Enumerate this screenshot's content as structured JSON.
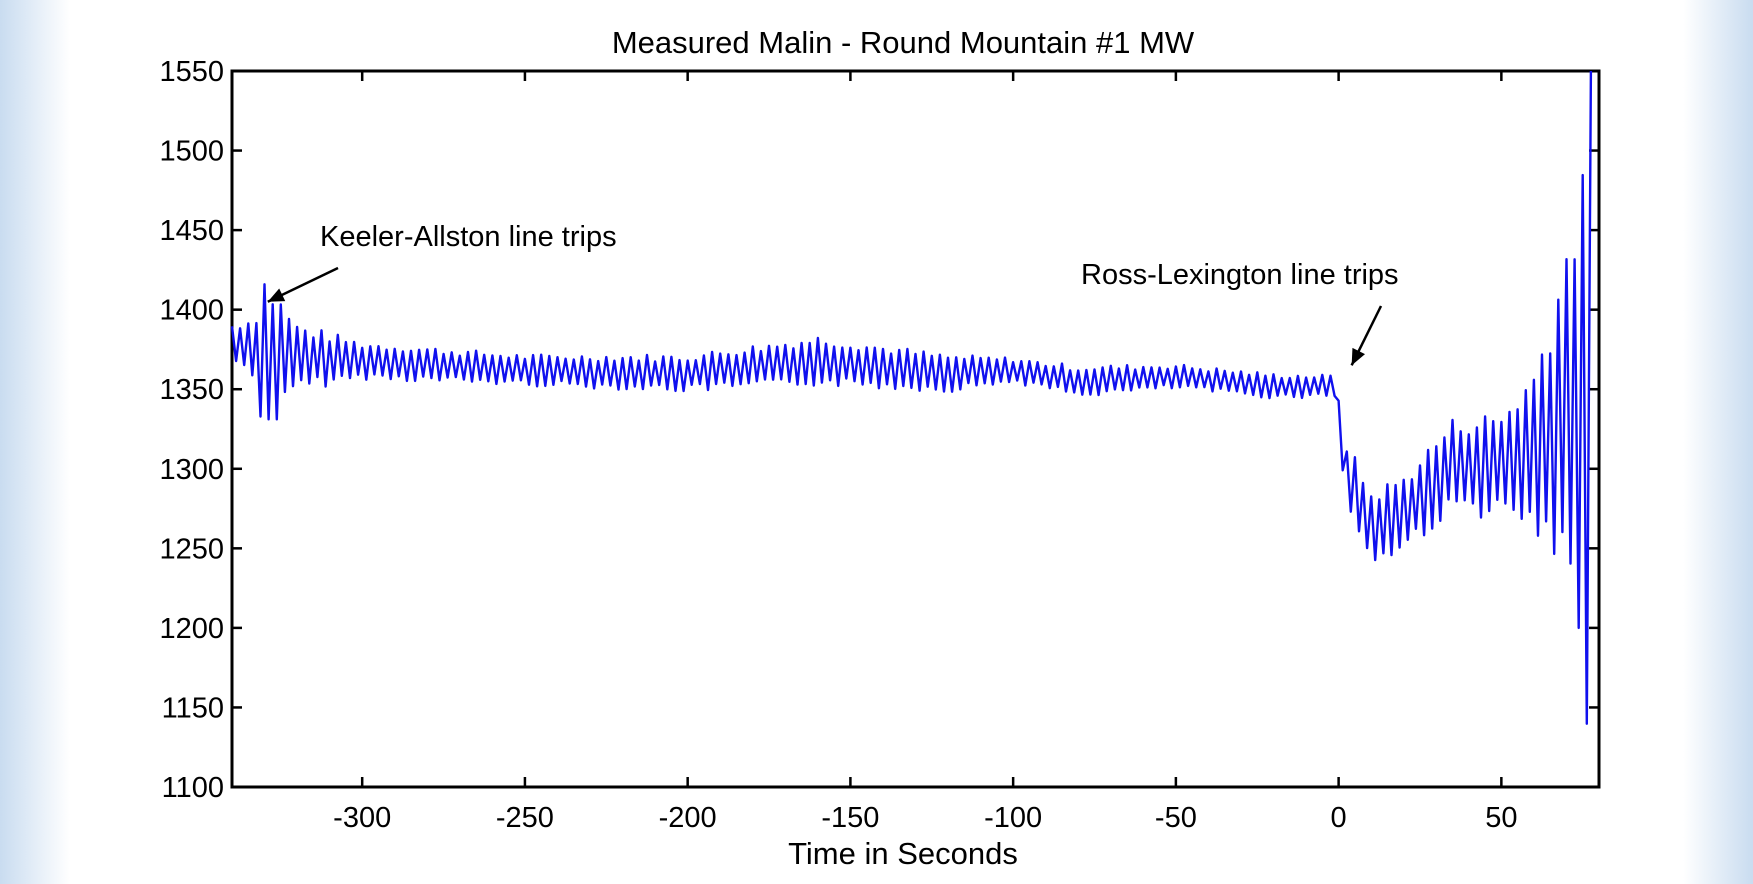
{
  "chart_data": {
    "type": "line",
    "title": "Measured Malin - Round Mountain #1 MW",
    "xlabel": "Time in Seconds",
    "ylabel": "",
    "xlim": [
      -340,
      80
    ],
    "ylim": [
      1100,
      1550
    ],
    "xticks": [
      -300,
      -250,
      -200,
      -150,
      -100,
      -50,
      0,
      50
    ],
    "yticks": [
      1100,
      1150,
      1200,
      1250,
      1300,
      1350,
      1400,
      1450,
      1500,
      1550
    ],
    "line_color": "#1010ee",
    "grid": false,
    "legend": "none",
    "series": [
      {
        "envelope": [
          {
            "t": -340,
            "mean": 1380,
            "amp": 12
          },
          {
            "t": -333,
            "mean": 1375,
            "amp": 22
          },
          {
            "t": -330,
            "mean": 1370,
            "amp": 55
          },
          {
            "t": -320,
            "mean": 1370,
            "amp": 22
          },
          {
            "t": -300,
            "mean": 1368,
            "amp": 12
          },
          {
            "t": -250,
            "mean": 1362,
            "amp": 10
          },
          {
            "t": -200,
            "mean": 1360,
            "amp": 12
          },
          {
            "t": -160,
            "mean": 1368,
            "amp": 16
          },
          {
            "t": -120,
            "mean": 1360,
            "amp": 12
          },
          {
            "t": -100,
            "mean": 1362,
            "amp": 8
          },
          {
            "t": -80,
            "mean": 1355,
            "amp": 10
          },
          {
            "t": -50,
            "mean": 1358,
            "amp": 8
          },
          {
            "t": -20,
            "mean": 1352,
            "amp": 8
          },
          {
            "t": -1,
            "mean": 1352,
            "amp": 7
          },
          {
            "t": 2,
            "mean": 1300,
            "amp": 20
          },
          {
            "t": 10,
            "mean": 1262,
            "amp": 25
          },
          {
            "t": 20,
            "mean": 1272,
            "amp": 25
          },
          {
            "t": 35,
            "mean": 1302,
            "amp": 30
          },
          {
            "t": 50,
            "mean": 1302,
            "amp": 35
          },
          {
            "t": 60,
            "mean": 1310,
            "amp": 55
          },
          {
            "t": 70,
            "mean": 1330,
            "amp": 120
          },
          {
            "t": 75,
            "mean": 1330,
            "amp": 200
          },
          {
            "t": 78,
            "mean": 1325,
            "amp": 240
          }
        ],
        "oscillation_period": 2.5,
        "start": -340,
        "end": 78
      }
    ],
    "annotations": [
      {
        "text": "Keeler-Allston line trips",
        "x": -329,
        "y": 1405
      },
      {
        "text": "Ross-Lexington line trips",
        "x": 4,
        "y": 1365
      }
    ]
  }
}
